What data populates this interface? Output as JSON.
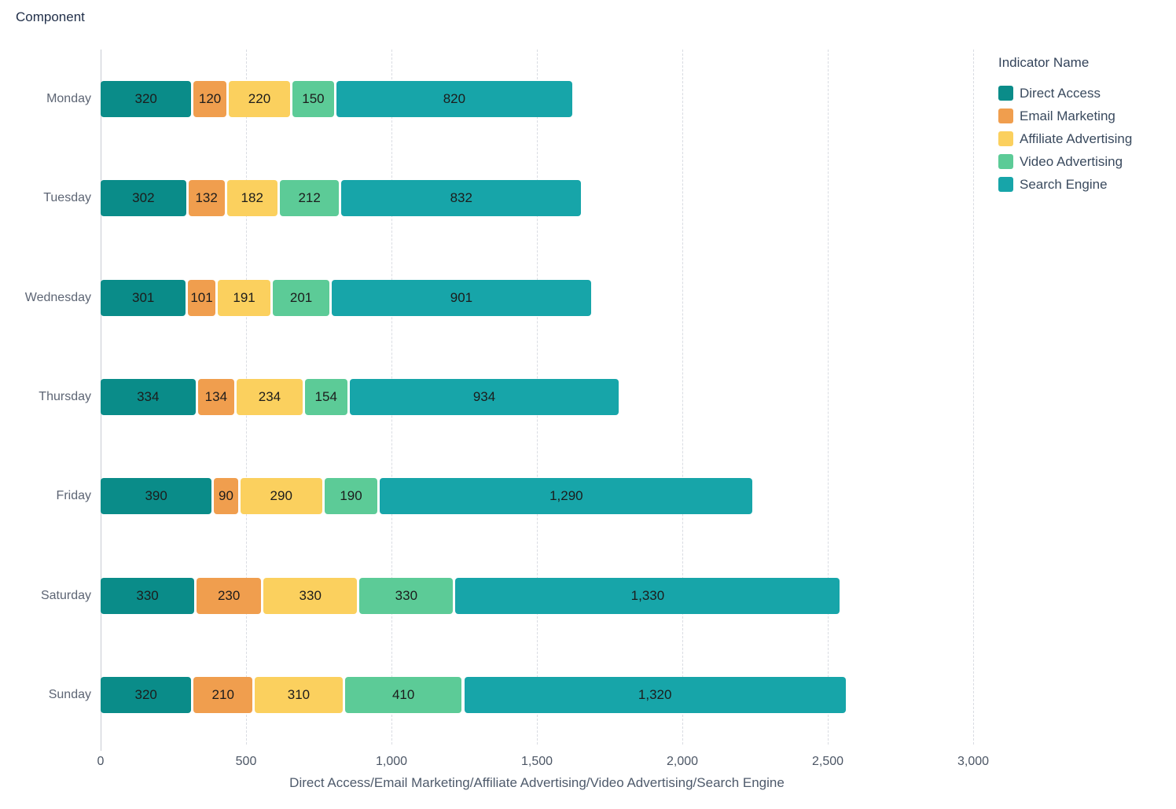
{
  "chart_data": {
    "type": "bar",
    "orientation": "horizontal-stacked",
    "title": "Component",
    "categories": [
      "Monday",
      "Tuesday",
      "Wednesday",
      "Thursday",
      "Friday",
      "Saturday",
      "Sunday"
    ],
    "series": [
      {
        "name": "Direct Access",
        "color": "#0a8c89",
        "values": [
          320,
          302,
          301,
          334,
          390,
          330,
          320
        ]
      },
      {
        "name": "Email Marketing",
        "color": "#f09e4e",
        "values": [
          120,
          132,
          101,
          134,
          90,
          230,
          210
        ]
      },
      {
        "name": "Affiliate Advertising",
        "color": "#fbd05e",
        "values": [
          220,
          182,
          191,
          234,
          290,
          330,
          310
        ]
      },
      {
        "name": "Video Advertising",
        "color": "#5ccb97",
        "values": [
          150,
          212,
          201,
          154,
          190,
          330,
          410
        ]
      },
      {
        "name": "Search Engine",
        "color": "#17a5a9",
        "values": [
          820,
          832,
          901,
          934,
          1290,
          1330,
          1320
        ]
      }
    ],
    "xlabel": "Direct Access/Email Marketing/Affiliate Advertising/Video Advertising/Search Engine",
    "xlim": [
      0,
      3000
    ],
    "xticks": [
      0,
      500,
      1000,
      1500,
      2000,
      2500,
      3000
    ],
    "xtick_labels": [
      "0",
      "500",
      "1,000",
      "1,500",
      "2,000",
      "2,500",
      "3,000"
    ],
    "legend_title": "Indicator Name",
    "legend_position": "right-top",
    "grid": "vertical-dashed",
    "colors": {
      "title_text": "#22304a",
      "axis_text": "#4c5665",
      "grid_line": "#d9dce2",
      "axis_line": "#c7cbd2",
      "bar_label_text": "#1c1c1c"
    }
  }
}
